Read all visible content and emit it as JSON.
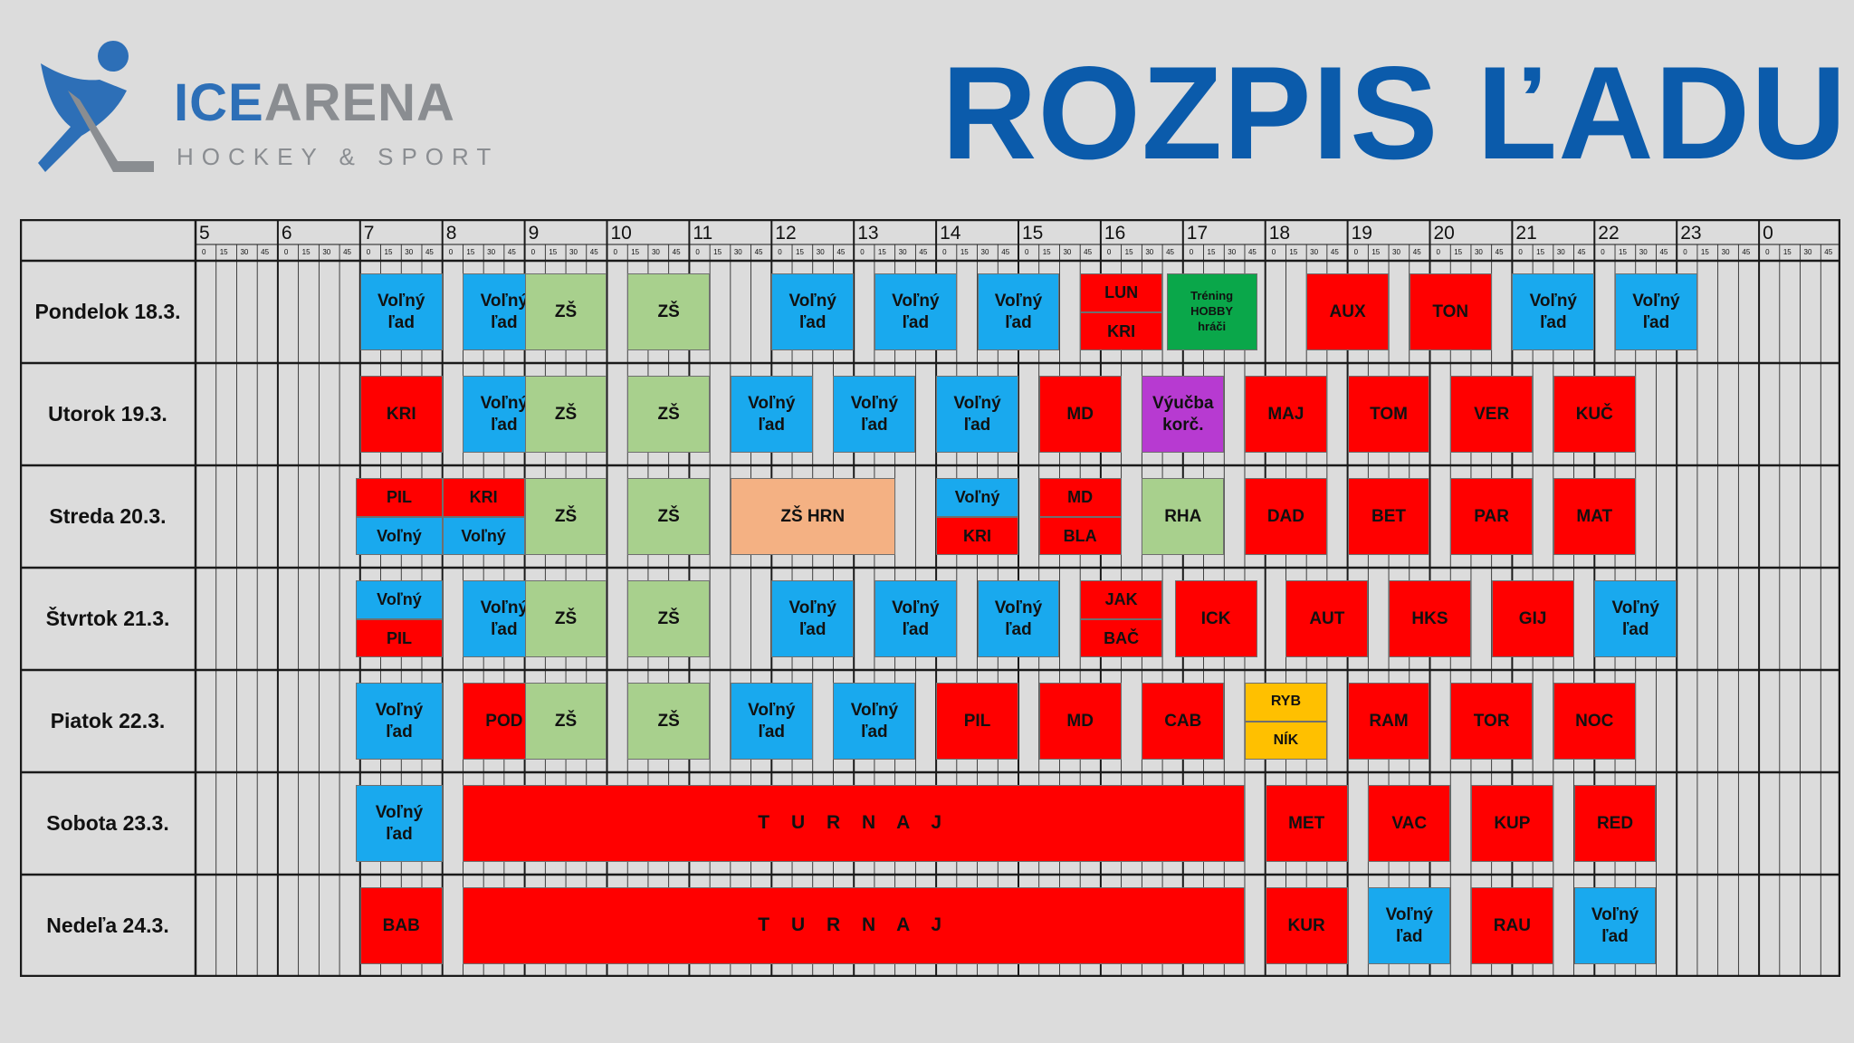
{
  "header": {
    "logo_ice": "ICE",
    "logo_arena": "ARENA",
    "logo_sub": "HOCKEY & SPORT",
    "title": "ROZPIS ĽADU"
  },
  "colors": {
    "blue": "#19a9ee",
    "red": "#ff0000",
    "light_green": "#a8d08d",
    "dark_green": "#0aa74a",
    "purple": "#b73ad1",
    "peach": "#f4b183",
    "yellow": "#ffc000",
    "title_blue": "#0b5bab"
  },
  "schedule": {
    "hours": [
      "5",
      "6",
      "7",
      "8",
      "9",
      "10",
      "11",
      "12",
      "13",
      "14",
      "15",
      "16",
      "17",
      "18",
      "19",
      "20",
      "21",
      "22",
      "23",
      "0"
    ],
    "quarters": [
      "0",
      "15",
      "30",
      "45"
    ],
    "days": [
      {
        "name": "Pondelok 18.3.",
        "blocks": [
          {
            "label": "Voľný\nľad",
            "color": "blue",
            "start": 7.0,
            "end": 8.0
          },
          {
            "label": "Voľný\nľad",
            "color": "blue",
            "start": 8.25,
            "end": 9.25
          },
          {
            "label": "ZŠ",
            "color": "lgreen",
            "start": 9.0,
            "end": 10.0
          },
          {
            "label": "ZŠ",
            "color": "lgreen",
            "start": 10.25,
            "end": 11.25
          },
          {
            "label": "Voľný\nľad",
            "color": "blue",
            "start": 12.0,
            "end": 13.0
          },
          {
            "label": "Voľný\nľad",
            "color": "blue",
            "start": 13.25,
            "end": 14.25
          },
          {
            "label": "Voľný\nľad",
            "color": "blue",
            "start": 14.5,
            "end": 15.5
          },
          {
            "label": "LUN",
            "color": "red",
            "start": 15.75,
            "end": 16.75,
            "half": "top"
          },
          {
            "label": "KRI",
            "color": "red",
            "start": 15.75,
            "end": 16.75,
            "half": "bottom"
          },
          {
            "label": "Tréning\nHOBBY\nhráči",
            "color": "dgreen",
            "start": 16.8,
            "end": 17.9
          },
          {
            "label": "AUX",
            "color": "red",
            "start": 18.5,
            "end": 19.5
          },
          {
            "label": "TON",
            "color": "red",
            "start": 19.75,
            "end": 20.75
          },
          {
            "label": "Voľný\nľad",
            "color": "blue",
            "start": 21.0,
            "end": 22.0
          },
          {
            "label": "Voľný\nľad",
            "color": "blue",
            "start": 22.25,
            "end": 23.25
          }
        ]
      },
      {
        "name": "Utorok 19.3.",
        "blocks": [
          {
            "label": "KRI",
            "color": "red",
            "start": 7.0,
            "end": 8.0
          },
          {
            "label": "Voľný\nľad",
            "color": "blue",
            "start": 8.25,
            "end": 9.25
          },
          {
            "label": "ZŠ",
            "color": "lgreen",
            "start": 9.0,
            "end": 10.0
          },
          {
            "label": "ZŠ",
            "color": "lgreen",
            "start": 10.25,
            "end": 11.25
          },
          {
            "label": "Voľný\nľad",
            "color": "blue",
            "start": 11.5,
            "end": 12.5
          },
          {
            "label": "Voľný\nľad",
            "color": "blue",
            "start": 12.75,
            "end": 13.75
          },
          {
            "label": "Voľný\nľad",
            "color": "blue",
            "start": 14.0,
            "end": 15.0
          },
          {
            "label": "MD",
            "color": "red",
            "start": 15.25,
            "end": 16.25
          },
          {
            "label": "Výučba\nkorč.",
            "color": "purple",
            "start": 16.5,
            "end": 17.5
          },
          {
            "label": "MAJ",
            "color": "red",
            "start": 17.75,
            "end": 18.75
          },
          {
            "label": "TOM",
            "color": "red",
            "start": 19.0,
            "end": 20.0
          },
          {
            "label": "VER",
            "color": "red",
            "start": 20.25,
            "end": 21.25
          },
          {
            "label": "KUČ",
            "color": "red",
            "start": 21.5,
            "end": 22.5
          }
        ]
      },
      {
        "name": "Streda 20.3.",
        "blocks": [
          {
            "label": "PIL",
            "color": "red",
            "start": 6.95,
            "end": 8.0,
            "half": "top"
          },
          {
            "label": "Voľný",
            "color": "blue",
            "start": 6.95,
            "end": 8.0,
            "half": "bottom"
          },
          {
            "label": "KRI",
            "color": "red",
            "start": 8.0,
            "end": 9.0,
            "half": "top"
          },
          {
            "label": "Voľný",
            "color": "blue",
            "start": 8.0,
            "end": 9.0,
            "half": "bottom"
          },
          {
            "label": "ZŠ",
            "color": "lgreen",
            "start": 9.0,
            "end": 10.0
          },
          {
            "label": "ZŠ",
            "color": "lgreen",
            "start": 10.25,
            "end": 11.25
          },
          {
            "label": "ZŠ HRN",
            "color": "peach",
            "start": 11.5,
            "end": 13.5
          },
          {
            "label": "Voľný",
            "color": "blue",
            "start": 14.0,
            "end": 15.0,
            "half": "top"
          },
          {
            "label": "KRI",
            "color": "red",
            "start": 14.0,
            "end": 15.0,
            "half": "bottom"
          },
          {
            "label": "MD",
            "color": "red",
            "start": 15.25,
            "end": 16.25,
            "half": "top"
          },
          {
            "label": "BLA",
            "color": "red",
            "start": 15.25,
            "end": 16.25,
            "half": "bottom"
          },
          {
            "label": "RHA",
            "color": "lgreen",
            "start": 16.5,
            "end": 17.5
          },
          {
            "label": "DAD",
            "color": "red",
            "start": 17.75,
            "end": 18.75
          },
          {
            "label": "BET",
            "color": "red",
            "start": 19.0,
            "end": 20.0
          },
          {
            "label": "PAR",
            "color": "red",
            "start": 20.25,
            "end": 21.25
          },
          {
            "label": "MAT",
            "color": "red",
            "start": 21.5,
            "end": 22.5
          }
        ]
      },
      {
        "name": "Štvrtok 21.3.",
        "blocks": [
          {
            "label": "Voľný",
            "color": "blue",
            "start": 6.95,
            "end": 8.0,
            "half": "top"
          },
          {
            "label": "PIL",
            "color": "red",
            "start": 6.95,
            "end": 8.0,
            "half": "bottom"
          },
          {
            "label": "Voľný\nľad",
            "color": "blue",
            "start": 8.25,
            "end": 9.25
          },
          {
            "label": "ZŠ",
            "color": "lgreen",
            "start": 9.0,
            "end": 10.0
          },
          {
            "label": "ZŠ",
            "color": "lgreen",
            "start": 10.25,
            "end": 11.25
          },
          {
            "label": "Voľný\nľad",
            "color": "blue",
            "start": 12.0,
            "end": 13.0
          },
          {
            "label": "Voľný\nľad",
            "color": "blue",
            "start": 13.25,
            "end": 14.25
          },
          {
            "label": "Voľný\nľad",
            "color": "blue",
            "start": 14.5,
            "end": 15.5
          },
          {
            "label": "JAK",
            "color": "red",
            "start": 15.75,
            "end": 16.75,
            "half": "top"
          },
          {
            "label": "BAČ",
            "color": "red",
            "start": 15.75,
            "end": 16.75,
            "half": "bottom"
          },
          {
            "label": "ICK",
            "color": "red",
            "start": 16.9,
            "end": 17.9
          },
          {
            "label": "AUT",
            "color": "red",
            "start": 18.25,
            "end": 19.25
          },
          {
            "label": "HKS",
            "color": "red",
            "start": 19.5,
            "end": 20.5
          },
          {
            "label": "GIJ",
            "color": "red",
            "start": 20.75,
            "end": 21.75
          },
          {
            "label": "Voľný\nľad",
            "color": "blue",
            "start": 22.0,
            "end": 23.0
          }
        ]
      },
      {
        "name": "Piatok 22.3.",
        "blocks": [
          {
            "label": "Voľný\nľad",
            "color": "blue",
            "start": 6.95,
            "end": 8.0
          },
          {
            "label": "POD",
            "color": "red",
            "start": 8.25,
            "end": 9.25
          },
          {
            "label": "ZŠ",
            "color": "lgreen",
            "start": 9.0,
            "end": 10.0
          },
          {
            "label": "ZŠ",
            "color": "lgreen",
            "start": 10.25,
            "end": 11.25
          },
          {
            "label": "Voľný\nľad",
            "color": "blue",
            "start": 11.5,
            "end": 12.5
          },
          {
            "label": "Voľný\nľad",
            "color": "blue",
            "start": 12.75,
            "end": 13.75
          },
          {
            "label": "PIL",
            "color": "red",
            "start": 14.0,
            "end": 15.0
          },
          {
            "label": "MD",
            "color": "red",
            "start": 15.25,
            "end": 16.25
          },
          {
            "label": "CAB",
            "color": "red",
            "start": 16.5,
            "end": 17.5
          },
          {
            "label": "RYB",
            "color": "yellow",
            "start": 17.75,
            "end": 18.75,
            "half": "top"
          },
          {
            "label": "NÍK",
            "color": "yellow",
            "start": 17.75,
            "end": 18.75,
            "half": "bottom"
          },
          {
            "label": "RAM",
            "color": "red",
            "start": 19.0,
            "end": 20.0
          },
          {
            "label": "TOR",
            "color": "red",
            "start": 20.25,
            "end": 21.25
          },
          {
            "label": "NOC",
            "color": "red",
            "start": 21.5,
            "end": 22.5
          }
        ]
      },
      {
        "name": "Sobota 23.3.",
        "blocks": [
          {
            "label": "Voľný\nľad",
            "color": "blue",
            "start": 6.95,
            "end": 8.0
          },
          {
            "label": "T U R N A J",
            "color": "red",
            "start": 8.25,
            "end": 17.75,
            "turnaj": true
          },
          {
            "label": "MET",
            "color": "red",
            "start": 18.0,
            "end": 19.0
          },
          {
            "label": "VAC",
            "color": "red",
            "start": 19.25,
            "end": 20.25
          },
          {
            "label": "KUP",
            "color": "red",
            "start": 20.5,
            "end": 21.5
          },
          {
            "label": "RED",
            "color": "red",
            "start": 21.75,
            "end": 22.75
          }
        ]
      },
      {
        "name": "Nedeľa 24.3.",
        "blocks": [
          {
            "label": "BAB",
            "color": "red",
            "start": 7.0,
            "end": 8.0
          },
          {
            "label": "T U R N A J",
            "color": "red",
            "start": 8.25,
            "end": 17.75,
            "turnaj": true
          },
          {
            "label": "KUR",
            "color": "red",
            "start": 18.0,
            "end": 19.0
          },
          {
            "label": "Voľný\nľad",
            "color": "blue",
            "start": 19.25,
            "end": 20.25
          },
          {
            "label": "RAU",
            "color": "red",
            "start": 20.5,
            "end": 21.5
          },
          {
            "label": "Voľný\nľad",
            "color": "blue",
            "start": 21.75,
            "end": 22.75
          }
        ]
      }
    ]
  }
}
